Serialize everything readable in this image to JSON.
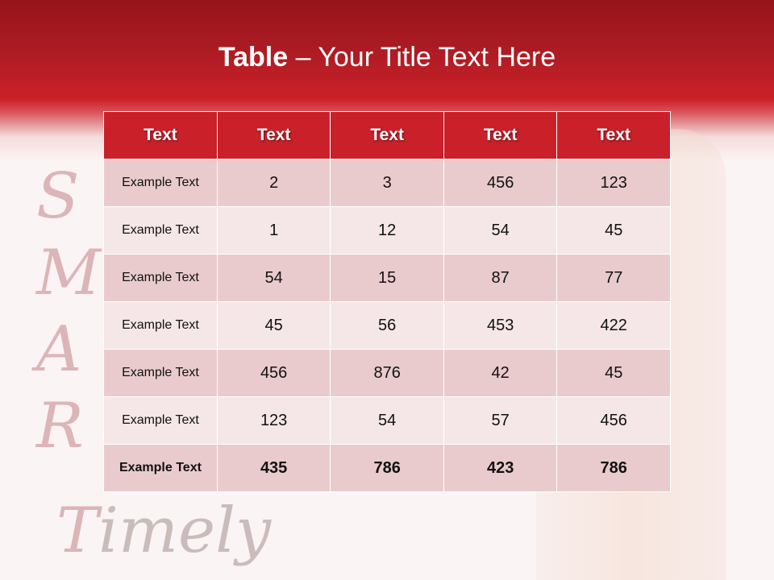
{
  "slide": {
    "title_bold": "Table",
    "title_rest": " – Your Title Text Here"
  },
  "background_letters": [
    "S",
    "M",
    "A",
    "R",
    "T",
    "imely"
  ],
  "colors": {
    "header": "#c9202a",
    "row_dark": "#eacbcd",
    "row_light": "#f5e7e7",
    "band": "#b01c24"
  },
  "table": {
    "headers": [
      "Text",
      "Text",
      "Text",
      "Text",
      "Text"
    ],
    "rows": [
      [
        "Example Text",
        "2",
        "3",
        "456",
        "123"
      ],
      [
        "Example Text",
        "1",
        "12",
        "54",
        "45"
      ],
      [
        "Example Text",
        "54",
        "15",
        "87",
        "77"
      ],
      [
        "Example Text",
        "45",
        "56",
        "453",
        "422"
      ],
      [
        "Example Text",
        "456",
        "876",
        "42",
        "45"
      ],
      [
        "Example Text",
        "123",
        "54",
        "57",
        "456"
      ],
      [
        "Example Text",
        "435",
        "786",
        "423",
        "786"
      ]
    ]
  }
}
